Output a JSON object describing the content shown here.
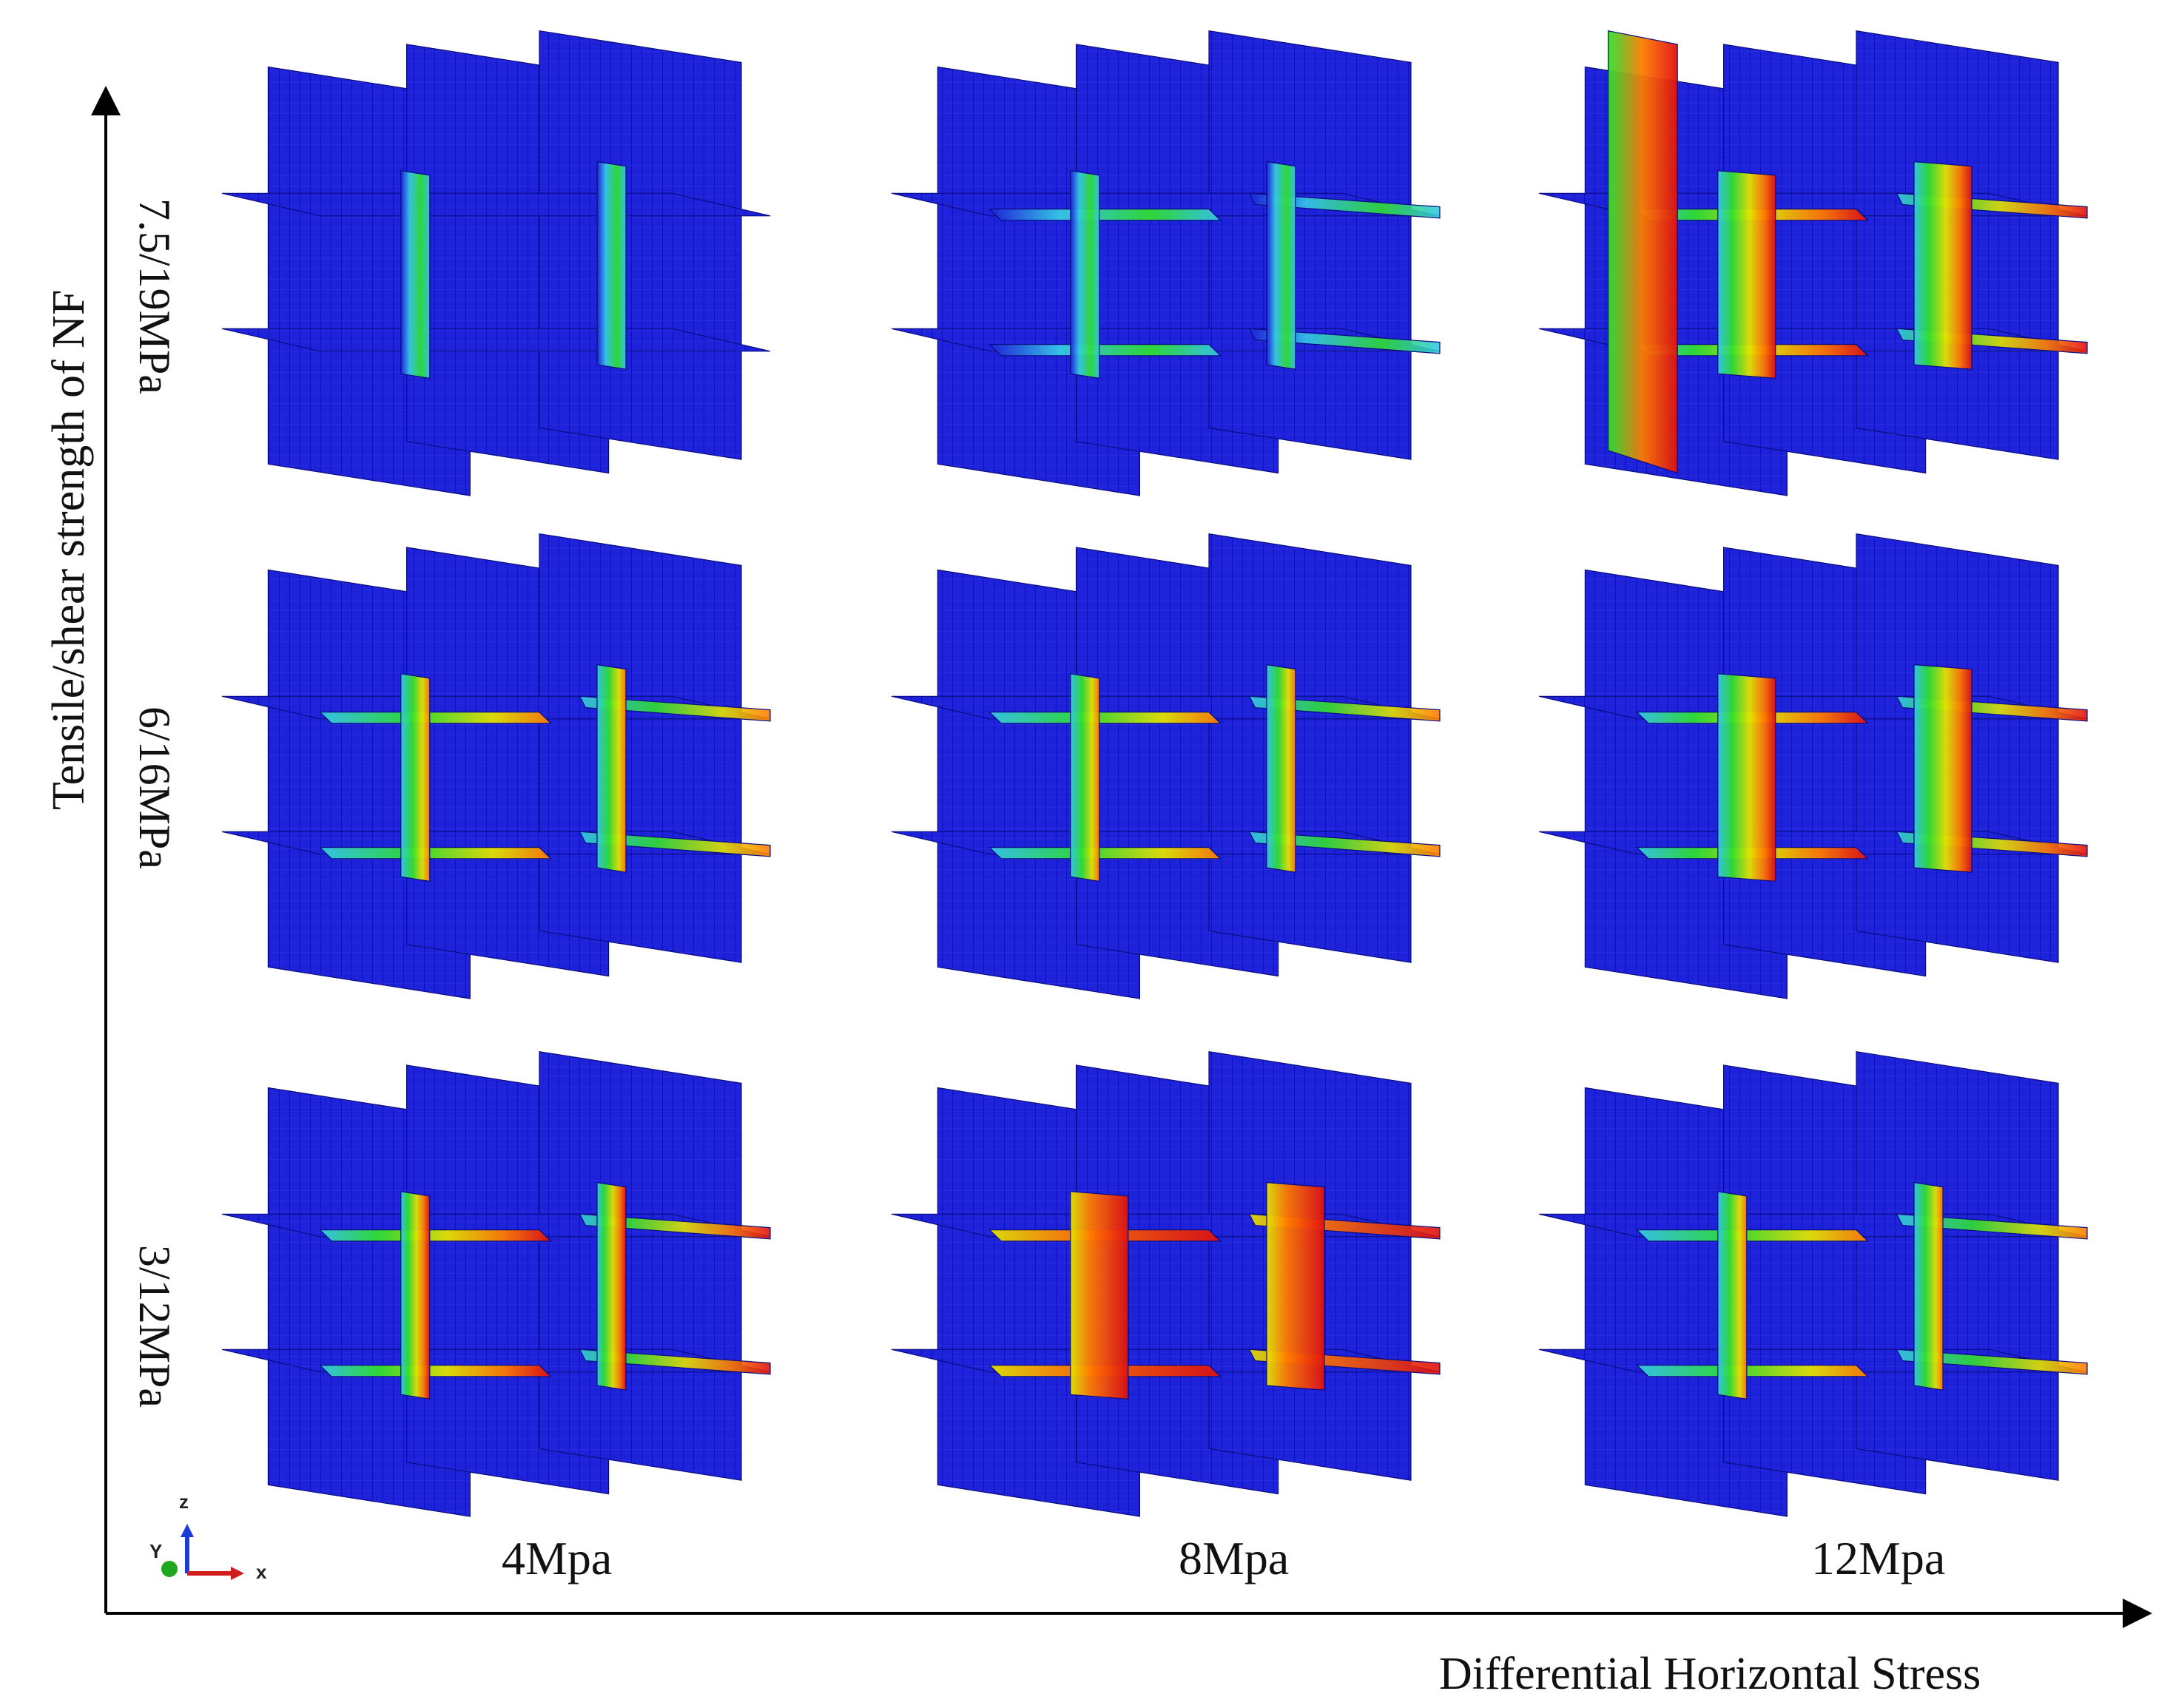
{
  "axes": {
    "y_title": "Tensile/shear strength of NF",
    "x_title": "Differential Horizontal Stress"
  },
  "rows": [
    {
      "label": "7.5/19MPa"
    },
    {
      "label": "6/16MPa"
    },
    {
      "label": "3/12MPa"
    }
  ],
  "columns": [
    {
      "label": "4Mpa"
    },
    {
      "label": "8Mpa"
    },
    {
      "label": "12Mpa"
    }
  ],
  "triad": {
    "z": "z",
    "y": "Y",
    "x": "x"
  },
  "colors": {
    "mesh_blue": "#1e22d8",
    "mesh_blue_dark": "#1518b0",
    "green": "#2fe02f",
    "cyan": "#36c8e8",
    "yellow": "#e4e400",
    "orange": "#ff7a00",
    "red": "#e01010"
  },
  "panels": [
    {
      "row": 0,
      "col": 0,
      "stress_level": 0.15
    },
    {
      "row": 0,
      "col": 1,
      "stress_level": 0.3
    },
    {
      "row": 0,
      "col": 2,
      "stress_level": 0.75
    },
    {
      "row": 1,
      "col": 0,
      "stress_level": 0.45
    },
    {
      "row": 1,
      "col": 1,
      "stress_level": 0.55
    },
    {
      "row": 1,
      "col": 2,
      "stress_level": 0.8
    },
    {
      "row": 2,
      "col": 0,
      "stress_level": 0.7
    },
    {
      "row": 2,
      "col": 1,
      "stress_level": 0.9
    },
    {
      "row": 2,
      "col": 2,
      "stress_level": 0.6
    }
  ]
}
